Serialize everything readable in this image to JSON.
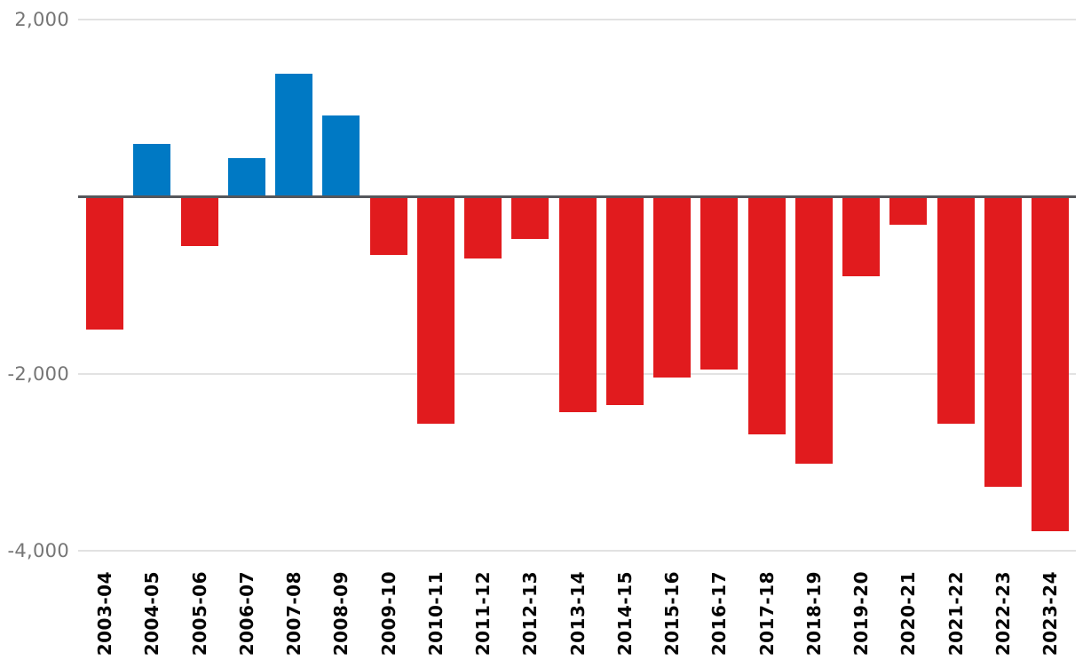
{
  "chart_data": {
    "type": "bar",
    "title": "",
    "xlabel": "",
    "ylabel": "",
    "categories": [
      "2003-04",
      "2004-05",
      "2005-06",
      "2006-07",
      "2007-08",
      "2008-09",
      "2009-10",
      "2010-11",
      "2011-12",
      "2012-13",
      "2013-14",
      "2014-15",
      "2015-16",
      "2016-17",
      "2017-18",
      "2018-19",
      "2019-20",
      "2020-21",
      "2021-22",
      "2022-23",
      "2023-24"
    ],
    "values": [
      -1500,
      600,
      -560,
      430,
      1390,
      920,
      -660,
      -2570,
      -700,
      -480,
      -2430,
      -2350,
      -2040,
      -1950,
      -2690,
      -3020,
      -900,
      -320,
      -2570,
      -3280,
      -3780
    ],
    "ylim": [
      -4000,
      2000
    ],
    "yticks": [
      {
        "value": 2000,
        "label": "2,000"
      },
      {
        "value": -2000,
        "label": "-2,000"
      },
      {
        "value": -4000,
        "label": "-4,000"
      }
    ],
    "zero_line": 0,
    "grid": "horizontal",
    "legend": "none",
    "colors": {
      "positive": "#0079c4",
      "negative": "#e11b1e",
      "grid": "#e2e2e2",
      "zero_line": "#55575b",
      "y_label": "#757575",
      "x_label": "#050505",
      "background": "#ffffff"
    }
  }
}
